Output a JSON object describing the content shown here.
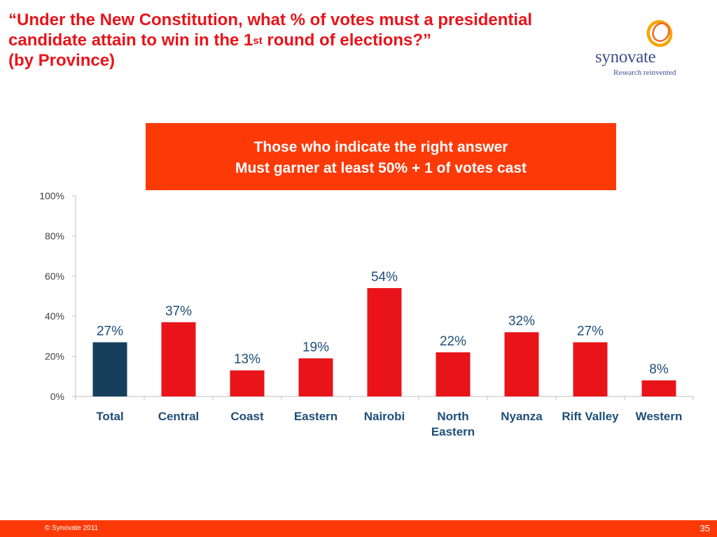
{
  "title": {
    "line1": "“Under the New Constitution, what  % of votes must a presidential",
    "line2_pre": "candidate attain to win in the 1",
    "line2_sup": "st",
    "line2_post": " round of elections?”",
    "line3": "(by Province)"
  },
  "logo": {
    "wordmark": "synovate",
    "tagline": "Research reinvented"
  },
  "callout": {
    "line1": "Those who indicate the right answer",
    "line2": "Must garner at least 50% + 1 of votes cast"
  },
  "footer": {
    "copyright": "© Synovate 2011",
    "page": "35"
  },
  "chart_data": {
    "type": "bar",
    "categories": [
      "Total",
      "Central",
      "Coast",
      "Eastern",
      "Nairobi",
      "North Eastern",
      "Nyanza",
      "Rift Valley",
      "Western"
    ],
    "category_lines": [
      [
        "Total"
      ],
      [
        "Central"
      ],
      [
        "Coast"
      ],
      [
        "Eastern"
      ],
      [
        "Nairobi"
      ],
      [
        "North",
        "Eastern"
      ],
      [
        "Nyanza"
      ],
      [
        "Rift Valley"
      ],
      [
        "Western"
      ]
    ],
    "values": [
      27,
      37,
      13,
      19,
      54,
      22,
      32,
      27,
      8
    ],
    "value_labels": [
      "27%",
      "37%",
      "13%",
      "19%",
      "54%",
      "22%",
      "32%",
      "27%",
      "8%"
    ],
    "yticks": [
      "0%",
      "20%",
      "40%",
      "60%",
      "80%",
      "100%"
    ],
    "ylim": [
      0,
      100
    ],
    "grid": false,
    "colors": {
      "total": "#173f5c",
      "province": "#e8141a",
      "value_label": "#1f4e79",
      "category_label": "#1f4e79",
      "tick": "#404040"
    }
  }
}
